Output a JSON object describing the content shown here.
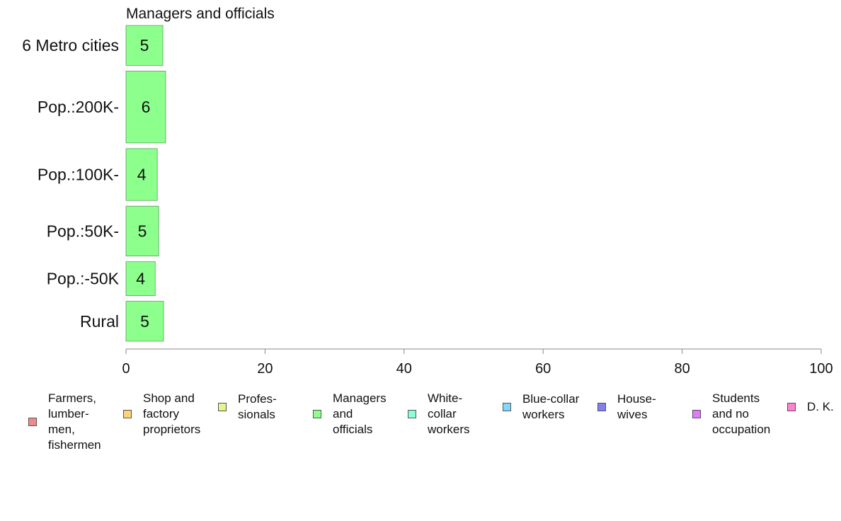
{
  "chart_data": {
    "type": "bar",
    "orientation": "horizontal",
    "title": "Managers and officials",
    "xlabel": "",
    "ylabel": "",
    "categories": [
      "6 Metro cities",
      "Pop.:200K-",
      "Pop.:100K-",
      "Pop.:50K-",
      "Pop.:-50K",
      "Rural"
    ],
    "category_weights": [
      1.0,
      1.8,
      1.3,
      1.25,
      0.85,
      1.0
    ],
    "values": [
      5.3,
      5.7,
      4.5,
      4.7,
      4.2,
      5.4
    ],
    "value_labels": [
      "5",
      "6",
      "4",
      "5",
      "4",
      "5"
    ],
    "xlim": [
      0,
      100
    ],
    "xticks": [
      0,
      20,
      40,
      60,
      80,
      100
    ],
    "xtick_labels": [
      "0",
      "20",
      "40",
      "60",
      "80",
      "100"
    ],
    "bar_color": "#8cff8c",
    "grid": false,
    "legend_position": "bottom",
    "legend": [
      {
        "label": "Farmers,\nlumber-\nmen,\nfishermen",
        "color": "#f08a8a"
      },
      {
        "label": "Shop and\nfactory\nproprietors",
        "color": "#ffd27a"
      },
      {
        "label": "Profes-\nsionals",
        "color": "#e4f58a"
      },
      {
        "label": "Managers\nand\nofficials",
        "color": "#8cff8c"
      },
      {
        "label": "White-\ncollar\nworkers",
        "color": "#8affd8"
      },
      {
        "label": "Blue-collar\nworkers",
        "color": "#80d8ff"
      },
      {
        "label": "House-\nwives",
        "color": "#8080f0"
      },
      {
        "label": "Students\nand no\noccupation",
        "color": "#e07aff"
      },
      {
        "label": "D. K.",
        "color": "#ff80d4"
      }
    ]
  }
}
